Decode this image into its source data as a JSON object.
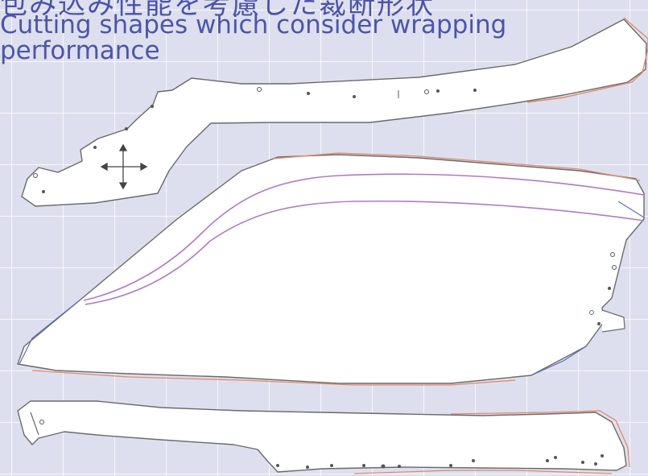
{
  "title_jp": "包み込み性能を考慮した裁断形状",
  "subtitle_en": {
    "line1": "Cutting shapes which consider wrapping",
    "line2": "performance"
  },
  "colors": {
    "background": "#dedfee",
    "title": "#4b55a9",
    "outline": "#6a6a6a",
    "offset_line": "#e08a6a",
    "inner_line": "#b07ac6",
    "blue_line": "#5a6fb8"
  },
  "icons": [
    "move-arrows-icon"
  ]
}
